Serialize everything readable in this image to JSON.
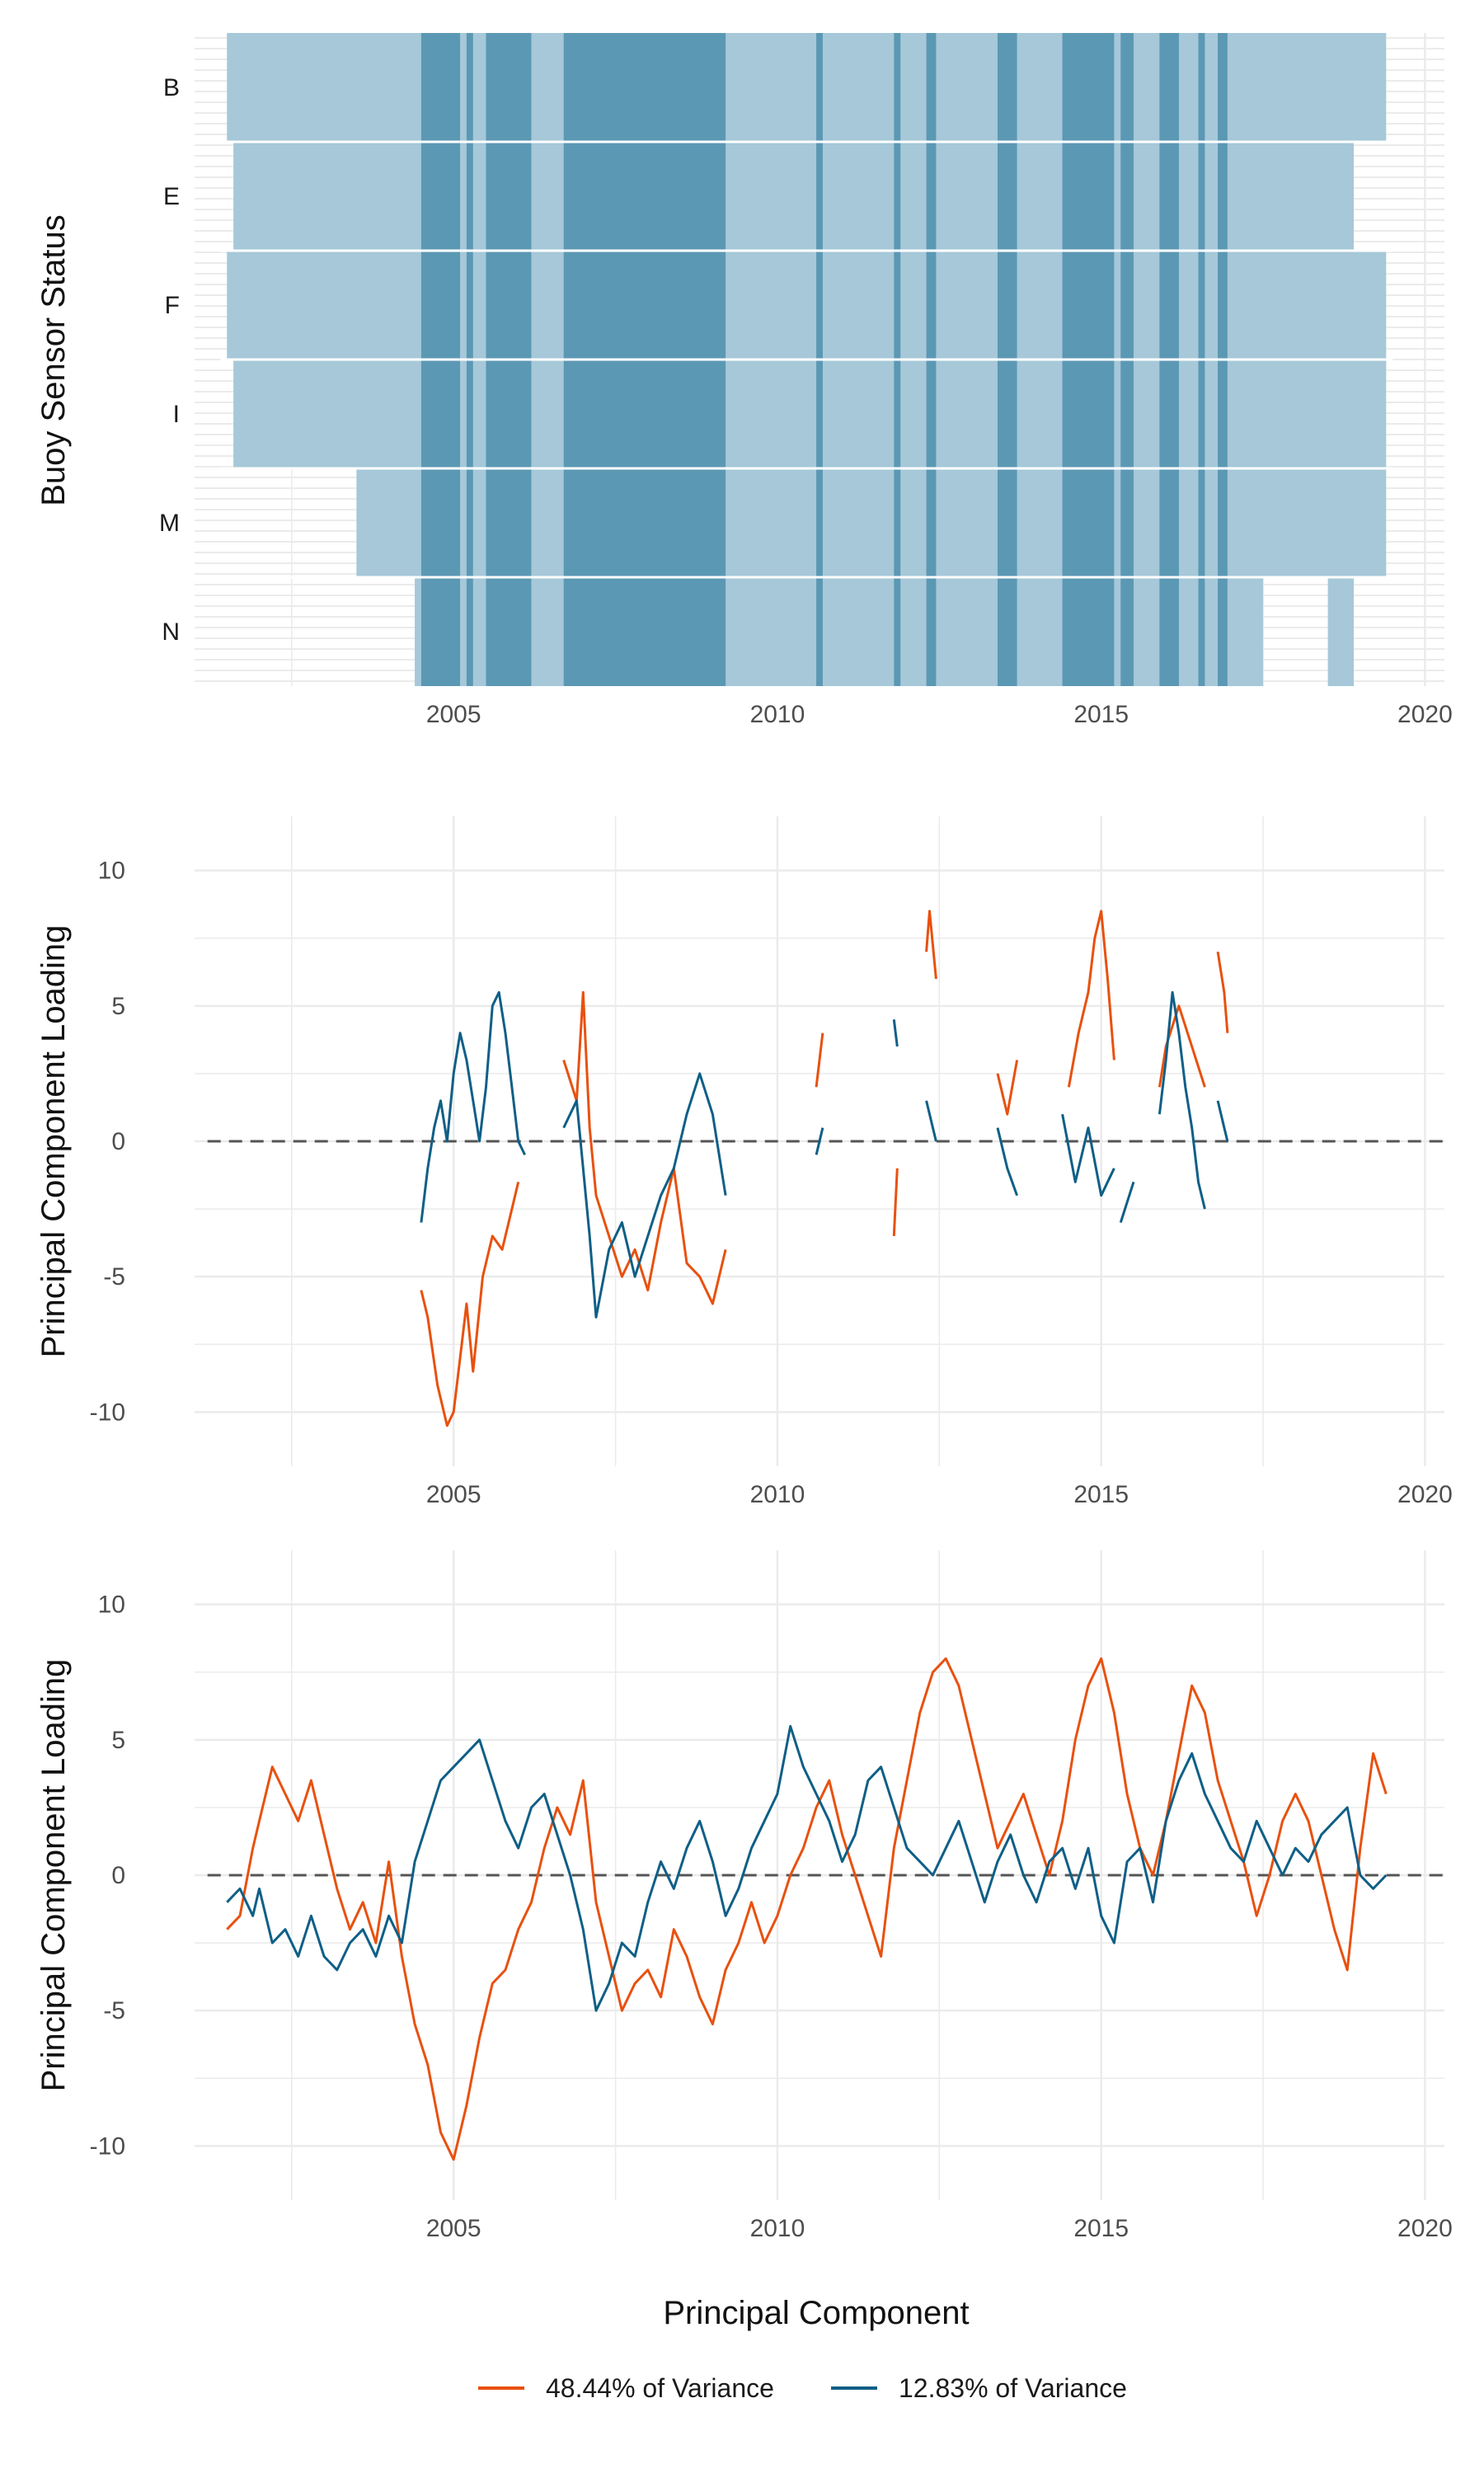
{
  "colors": {
    "series_a": "#e8510f",
    "series_b": "#0f5f86",
    "status_light": "#a6c8d8",
    "status_dark": "#4d8fae",
    "grid": "#ebebeb",
    "zero_line": "#555555"
  },
  "chart_data": [
    {
      "type": "heatmap",
      "ylabel": "Buoy Sensor Status",
      "xlabel": "",
      "xlim": [
        2001,
        2020.3
      ],
      "x_ticks": [
        "2005",
        "2010",
        "2015",
        "2020"
      ],
      "categories": [
        "B",
        "E",
        "F",
        "I",
        "M",
        "N"
      ],
      "grid": true,
      "availability": [
        {
          "name": "B",
          "spans": [
            [
              2001.5,
              2019.4
            ]
          ]
        },
        {
          "name": "E",
          "spans": [
            [
              2001.6,
              2018.9
            ]
          ]
        },
        {
          "name": "F",
          "spans": [
            [
              2001.5,
              2019.4
            ]
          ]
        },
        {
          "name": "I",
          "spans": [
            [
              2001.6,
              2019.4
            ]
          ]
        },
        {
          "name": "M",
          "spans": [
            [
              2003.5,
              2019.4
            ]
          ]
        },
        {
          "name": "N",
          "spans": [
            [
              2004.4,
              2017.5
            ],
            [
              2018.5,
              2018.9
            ]
          ]
        }
      ],
      "all_sensors_periods": [
        [
          2004.5,
          2005.1
        ],
        [
          2005.2,
          2005.3
        ],
        [
          2005.5,
          2006.2
        ],
        [
          2006.7,
          2009.2
        ],
        [
          2010.6,
          2010.7
        ],
        [
          2011.8,
          2011.9
        ],
        [
          2012.3,
          2012.45
        ],
        [
          2013.4,
          2013.7
        ],
        [
          2014.4,
          2015.2
        ],
        [
          2015.3,
          2015.5
        ],
        [
          2015.9,
          2016.2
        ],
        [
          2016.5,
          2016.6
        ],
        [
          2016.8,
          2016.95
        ]
      ]
    },
    {
      "type": "line",
      "ylabel": "Principal Component Loading",
      "xlabel": "",
      "xlim": [
        2001,
        2020.3
      ],
      "ylim": [
        -12,
        12
      ],
      "x_ticks": [
        "2005",
        "2010",
        "2015",
        "2020"
      ],
      "y_ticks": [
        "10",
        "5",
        "0",
        "-5",
        "-10"
      ],
      "series": [
        {
          "name": "48.44% of Variance",
          "x": [
            2004.5,
            2004.6,
            2004.75,
            2004.9,
            2005.0,
            2005.1,
            2005.2,
            2005.3,
            2005.45,
            2005.6,
            2005.75,
            2005.9,
            2006.0,
            null,
            2006.7,
            2006.9,
            2007.0,
            2007.1,
            2007.2,
            2007.4,
            2007.6,
            2007.8,
            2008.0,
            2008.2,
            2008.4,
            2008.6,
            2008.8,
            2009.0,
            2009.2,
            null,
            2010.6,
            2010.7,
            null,
            2011.8,
            2011.85,
            null,
            2012.3,
            2012.35,
            2012.45,
            null,
            2013.4,
            2013.55,
            2013.7,
            null,
            2014.5,
            2014.65,
            2014.8,
            2014.9,
            2015.0,
            2015.1,
            2015.2,
            null,
            2015.9,
            2016.0,
            2016.2,
            2016.4,
            2016.6,
            null,
            2016.8,
            2016.9,
            2016.95
          ],
          "y": [
            -5.5,
            -6.5,
            -9.0,
            -10.5,
            -10.0,
            -8.0,
            -6.0,
            -8.5,
            -5.0,
            -3.5,
            -4.0,
            -2.5,
            -1.5,
            null,
            3.0,
            1.5,
            5.5,
            0.5,
            -2.0,
            -3.5,
            -5.0,
            -4.0,
            -5.5,
            -3.0,
            -1.0,
            -4.5,
            -5.0,
            -6.0,
            -4.0,
            null,
            2.0,
            4.0,
            null,
            -3.5,
            -1.0,
            null,
            7.0,
            8.5,
            6.0,
            null,
            2.5,
            1.0,
            3.0,
            null,
            2.0,
            4.0,
            5.5,
            7.5,
            8.5,
            6.0,
            3.0,
            null,
            2.0,
            3.5,
            5.0,
            3.5,
            2.0,
            null,
            7.0,
            5.5,
            4.0
          ]
        },
        {
          "name": "12.83% of Variance",
          "x": [
            2004.5,
            2004.6,
            2004.7,
            2004.8,
            2004.9,
            2005.0,
            2005.1,
            2005.2,
            2005.3,
            2005.4,
            2005.5,
            2005.6,
            2005.7,
            2005.8,
            2005.9,
            2006.0,
            2006.1,
            null,
            2006.7,
            2006.9,
            2007.0,
            2007.1,
            2007.2,
            2007.4,
            2007.6,
            2007.8,
            2008.0,
            2008.2,
            2008.4,
            2008.6,
            2008.8,
            2009.0,
            2009.2,
            null,
            2010.6,
            2010.7,
            null,
            2011.8,
            2011.85,
            null,
            2012.3,
            2012.45,
            null,
            2013.4,
            2013.55,
            2013.7,
            null,
            2014.4,
            2014.6,
            2014.8,
            2015.0,
            2015.2,
            null,
            2015.3,
            2015.5,
            null,
            2015.9,
            2016.0,
            2016.1,
            2016.2,
            2016.3,
            2016.4,
            2016.5,
            2016.6,
            null,
            2016.8,
            2016.9,
            2016.95
          ],
          "y": [
            -3.0,
            -1.0,
            0.5,
            1.5,
            0.0,
            2.5,
            4.0,
            3.0,
            1.5,
            0.0,
            2.0,
            5.0,
            5.5,
            4.0,
            2.0,
            0.0,
            -0.5,
            null,
            0.5,
            1.5,
            -1.0,
            -3.5,
            -6.5,
            -4.0,
            -3.0,
            -5.0,
            -3.5,
            -2.0,
            -1.0,
            1.0,
            2.5,
            1.0,
            -2.0,
            null,
            -0.5,
            0.5,
            null,
            4.5,
            3.5,
            null,
            1.5,
            0.0,
            null,
            0.5,
            -1.0,
            -2.0,
            null,
            1.0,
            -1.5,
            0.5,
            -2.0,
            -1.0,
            null,
            -3.0,
            -1.5,
            null,
            1.0,
            3.0,
            5.5,
            4.0,
            2.0,
            0.5,
            -1.5,
            -2.5,
            null,
            1.5,
            0.5,
            0.0
          ]
        }
      ]
    },
    {
      "type": "line",
      "ylabel": "Principal Component Loading",
      "xlabel": "Principal Component",
      "xlim": [
        2001,
        2020.3
      ],
      "ylim": [
        -12,
        12
      ],
      "x_ticks": [
        "2005",
        "2010",
        "2015",
        "2020"
      ],
      "y_ticks": [
        "10",
        "5",
        "0",
        "-5",
        "-10"
      ],
      "legend_position": "bottom",
      "series": [
        {
          "name": "48.44% of Variance",
          "x": [
            2001.5,
            2001.7,
            2001.9,
            2002.0,
            2002.2,
            2002.4,
            2002.6,
            2002.8,
            2003.0,
            2003.2,
            2003.4,
            2003.6,
            2003.8,
            2004.0,
            2004.2,
            2004.4,
            2004.6,
            2004.8,
            2005.0,
            2005.2,
            2005.4,
            2005.6,
            2005.8,
            2006.0,
            2006.2,
            2006.4,
            2006.6,
            2006.8,
            2007.0,
            2007.2,
            2007.4,
            2007.6,
            2007.8,
            2008.0,
            2008.2,
            2008.4,
            2008.6,
            2008.8,
            2009.0,
            2009.2,
            2009.4,
            2009.6,
            2009.8,
            2010.0,
            2010.2,
            2010.4,
            2010.6,
            2010.8,
            2011.0,
            2011.2,
            2011.4,
            2011.6,
            2011.8,
            2012.0,
            2012.2,
            2012.4,
            2012.6,
            2012.8,
            2013.0,
            2013.2,
            2013.4,
            2013.6,
            2013.8,
            2014.0,
            2014.2,
            2014.4,
            2014.6,
            2014.8,
            2015.0,
            2015.2,
            2015.4,
            2015.6,
            2015.8,
            2016.0,
            2016.2,
            2016.4,
            2016.6,
            2016.8,
            2017.0,
            2017.2,
            2017.4,
            2017.6,
            2017.8,
            2018.0,
            2018.2,
            2018.4,
            2018.6,
            2018.8,
            2019.0,
            2019.2,
            2019.4
          ],
          "y": [
            -2.0,
            -1.5,
            1.0,
            2.0,
            4.0,
            3.0,
            2.0,
            3.5,
            1.5,
            -0.5,
            -2.0,
            -1.0,
            -2.5,
            0.5,
            -3.0,
            -5.5,
            -7.0,
            -9.5,
            -10.5,
            -8.5,
            -6.0,
            -4.0,
            -3.5,
            -2.0,
            -1.0,
            1.0,
            2.5,
            1.5,
            3.5,
            -1.0,
            -3.0,
            -5.0,
            -4.0,
            -3.5,
            -4.5,
            -2.0,
            -3.0,
            -4.5,
            -5.5,
            -3.5,
            -2.5,
            -1.0,
            -2.5,
            -1.5,
            0.0,
            1.0,
            2.5,
            3.5,
            1.5,
            0.0,
            -1.5,
            -3.0,
            1.0,
            3.5,
            6.0,
            7.5,
            8.0,
            7.0,
            5.0,
            3.0,
            1.0,
            2.0,
            3.0,
            1.5,
            0.0,
            2.0,
            5.0,
            7.0,
            8.0,
            6.0,
            3.0,
            1.0,
            0.0,
            2.0,
            4.5,
            7.0,
            6.0,
            3.5,
            2.0,
            0.5,
            -1.5,
            0.0,
            2.0,
            3.0,
            2.0,
            0.0,
            -2.0,
            -3.5,
            1.0,
            4.5,
            3.0
          ]
        },
        {
          "name": "12.83% of Variance",
          "x": [
            2001.5,
            2001.7,
            2001.9,
            2002.0,
            2002.2,
            2002.4,
            2002.6,
            2002.8,
            2003.0,
            2003.2,
            2003.4,
            2003.6,
            2003.8,
            2004.0,
            2004.2,
            2004.4,
            2004.6,
            2004.8,
            2005.0,
            2005.2,
            2005.4,
            2005.6,
            2005.8,
            2006.0,
            2006.2,
            2006.4,
            2006.6,
            2006.8,
            2007.0,
            2007.2,
            2007.4,
            2007.6,
            2007.8,
            2008.0,
            2008.2,
            2008.4,
            2008.6,
            2008.8,
            2009.0,
            2009.2,
            2009.4,
            2009.6,
            2009.8,
            2010.0,
            2010.2,
            2010.4,
            2010.6,
            2010.8,
            2011.0,
            2011.2,
            2011.4,
            2011.6,
            2011.8,
            2012.0,
            2012.2,
            2012.4,
            2012.6,
            2012.8,
            2013.0,
            2013.2,
            2013.4,
            2013.6,
            2013.8,
            2014.0,
            2014.2,
            2014.4,
            2014.6,
            2014.8,
            2015.0,
            2015.2,
            2015.4,
            2015.6,
            2015.8,
            2016.0,
            2016.2,
            2016.4,
            2016.6,
            2016.8,
            2017.0,
            2017.2,
            2017.4,
            2017.6,
            2017.8,
            2018.0,
            2018.2,
            2018.4,
            2018.6,
            2018.8,
            2019.0,
            2019.2,
            2019.4
          ],
          "y": [
            -1.0,
            -0.5,
            -1.5,
            -0.5,
            -2.5,
            -2.0,
            -3.0,
            -1.5,
            -3.0,
            -3.5,
            -2.5,
            -2.0,
            -3.0,
            -1.5,
            -2.5,
            0.5,
            2.0,
            3.5,
            4.0,
            4.5,
            5.0,
            3.5,
            2.0,
            1.0,
            2.5,
            3.0,
            1.5,
            0.0,
            -2.0,
            -5.0,
            -4.0,
            -2.5,
            -3.0,
            -1.0,
            0.5,
            -0.5,
            1.0,
            2.0,
            0.5,
            -1.5,
            -0.5,
            1.0,
            2.0,
            3.0,
            5.5,
            4.0,
            3.0,
            2.0,
            0.5,
            1.5,
            3.5,
            4.0,
            2.5,
            1.0,
            0.5,
            0.0,
            1.0,
            2.0,
            0.5,
            -1.0,
            0.5,
            1.5,
            0.0,
            -1.0,
            0.5,
            1.0,
            -0.5,
            1.0,
            -1.5,
            -2.5,
            0.5,
            1.0,
            -1.0,
            2.0,
            3.5,
            4.5,
            3.0,
            2.0,
            1.0,
            0.5,
            2.0,
            1.0,
            0.0,
            1.0,
            0.5,
            1.5,
            2.0,
            2.5,
            0.0,
            -0.5,
            0.0
          ]
        }
      ]
    }
  ]
}
